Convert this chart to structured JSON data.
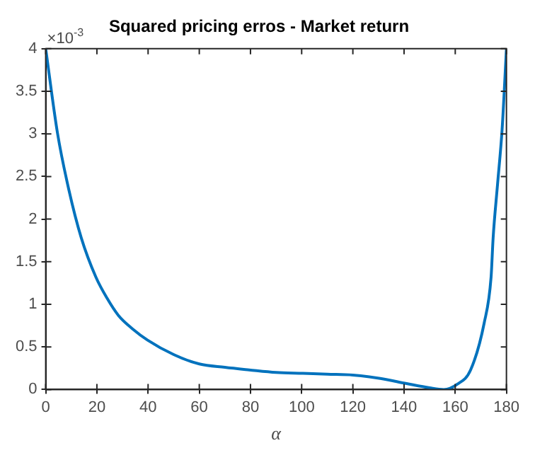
{
  "chart_data": {
    "type": "line",
    "title": "Squared pricing erros - Market return",
    "xlabel": "α",
    "annotations": [
      "×10$^{-3}$"
    ],
    "series": [
      {
        "color": "#0072bd",
        "x": [
          0,
          4.6,
          9,
          13.9,
          19.6,
          24,
          28.4,
          34,
          39.8,
          50,
          60,
          70,
          79.5,
          90,
          100.5,
          110,
          120,
          130.7,
          141,
          150,
          155.5,
          160.7,
          166,
          171.3,
          174,
          174.8,
          176.5,
          178.3,
          180
        ],
        "values": [
          4.0,
          3.01,
          2.35,
          1.78,
          1.32,
          1.07,
          0.87,
          0.71,
          0.58,
          0.41,
          0.3,
          0.26,
          0.23,
          0.2,
          0.19,
          0.18,
          0.17,
          0.13,
          0.07,
          0.02,
          0,
          0.06,
          0.23,
          0.78,
          1.32,
          1.78,
          2.4,
          3.05,
          4.0
        ]
      }
    ],
    "xlim": [
      0,
      180
    ],
    "xticks": [
      0,
      20,
      40,
      60,
      80,
      100,
      120,
      140,
      160,
      180
    ],
    "ylim": [
      0,
      4
    ],
    "yticks": [
      0,
      0.5,
      1,
      1.5,
      2,
      2.5,
      3,
      3.5,
      4
    ],
    "grid": false,
    "legend": false,
    "marker": "none",
    "line_style": "solid"
  }
}
